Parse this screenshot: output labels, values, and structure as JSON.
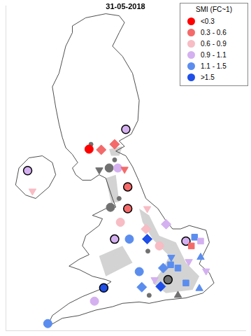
{
  "chart_data": {
    "type": "scatter",
    "title": "31-05-2018",
    "legend_title": "SMI (FC~1)",
    "legend": "top right",
    "grid": false,
    "tick_labels": false,
    "xlim": [
      0,
      750
    ],
    "ylim": [
      0,
      1000
    ],
    "series": [
      {
        "name": "<0.3",
        "color": "#ff0000",
        "points": [
          {
            "x": 261,
            "y": 558,
            "marker": "circle"
          }
        ]
      },
      {
        "name": "0.3 - 0.6",
        "color": "#f46a6a",
        "points": [
          {
            "x": 341,
            "y": 573,
            "marker": "diamond"
          },
          {
            "x": 299,
            "y": 556,
            "marker": "diamond"
          },
          {
            "x": 372,
            "y": 496,
            "marker": "triangle_down"
          },
          {
            "x": 382,
            "y": 442,
            "marker": "circle_outlined"
          },
          {
            "x": 382,
            "y": 375,
            "marker": "circle_outlined"
          },
          {
            "x": 581,
            "y": 260,
            "marker": "square"
          }
        ]
      },
      {
        "name": "0.6 - 0.9",
        "color": "#f7bcc4",
        "points": [
          {
            "x": 359,
            "y": 333,
            "marker": "circle"
          },
          {
            "x": 443,
            "y": 375,
            "marker": "triangle_down"
          },
          {
            "x": 84,
            "y": 429,
            "marker": "triangle_down"
          },
          {
            "x": 439,
            "y": 312,
            "marker": "diamond"
          },
          {
            "x": 481,
            "y": 260,
            "marker": "circle"
          }
        ]
      },
      {
        "name": "0.9 - 1.1",
        "color": "#d4b0f0",
        "points": [
          {
            "x": 376,
            "y": 619,
            "marker": "circle_outlined"
          },
          {
            "x": 351,
            "y": 500,
            "marker": "circle"
          },
          {
            "x": 502,
            "y": 327,
            "marker": "diamond"
          },
          {
            "x": 69,
            "y": 492,
            "marker": "circle_outlined"
          },
          {
            "x": 341,
            "y": 281,
            "marker": "circle_outlined"
          },
          {
            "x": 564,
            "y": 275,
            "marker": "circle_outlined"
          },
          {
            "x": 610,
            "y": 275,
            "marker": "square"
          },
          {
            "x": 627,
            "y": 183,
            "marker": "triangle_down"
          },
          {
            "x": 573,
            "y": 212,
            "marker": "triangle_down"
          },
          {
            "x": 466,
            "y": 156,
            "marker": "triangle_down"
          },
          {
            "x": 278,
            "y": 90,
            "marker": "circle"
          }
        ]
      },
      {
        "name": "1.1 - 1.5",
        "color": "#5b8def",
        "points": [
          {
            "x": 387,
            "y": 281,
            "marker": "circle"
          },
          {
            "x": 591,
            "y": 287,
            "marker": "square"
          },
          {
            "x": 518,
            "y": 225,
            "marker": "triangle_down"
          },
          {
            "x": 493,
            "y": 192,
            "marker": "diamond"
          },
          {
            "x": 516,
            "y": 202,
            "marker": "square"
          },
          {
            "x": 539,
            "y": 192,
            "marker": "square"
          },
          {
            "x": 610,
            "y": 225,
            "marker": "triangle"
          },
          {
            "x": 564,
            "y": 146,
            "marker": "square"
          },
          {
            "x": 606,
            "y": 129,
            "marker": "triangle"
          },
          {
            "x": 426,
            "y": 133,
            "marker": "diamond"
          },
          {
            "x": 418,
            "y": 181,
            "marker": "circle"
          },
          {
            "x": 132,
            "y": 21,
            "marker": "circle"
          }
        ]
      },
      {
        "name": ">1.5",
        "color": "#1f4fe8",
        "points": [
          {
            "x": 443,
            "y": 281,
            "marker": "diamond"
          },
          {
            "x": 485,
            "y": 135,
            "marker": "diamond"
          },
          {
            "x": 307,
            "y": 131,
            "marker": "circle_outlined"
          }
        ]
      },
      {
        "color": "#707070",
        "points": [
          {
            "x": 267,
            "y": 573,
            "marker": "dot"
          },
          {
            "x": 341,
            "y": 525,
            "marker": "dot"
          },
          {
            "x": 293,
            "y": 494,
            "marker": "triangle_down"
          },
          {
            "x": 324,
            "y": 500,
            "marker": "circle"
          },
          {
            "x": 355,
            "y": 406,
            "marker": "dot"
          },
          {
            "x": 328,
            "y": 379,
            "marker": "circle"
          },
          {
            "x": 445,
            "y": 244,
            "marker": "dot"
          },
          {
            "x": 508,
            "y": 156,
            "marker": "circle_outlined"
          },
          {
            "x": 539,
            "y": 108,
            "marker": "triangle"
          },
          {
            "x": 449,
            "y": 108,
            "marker": "dot"
          }
        ]
      }
    ]
  }
}
